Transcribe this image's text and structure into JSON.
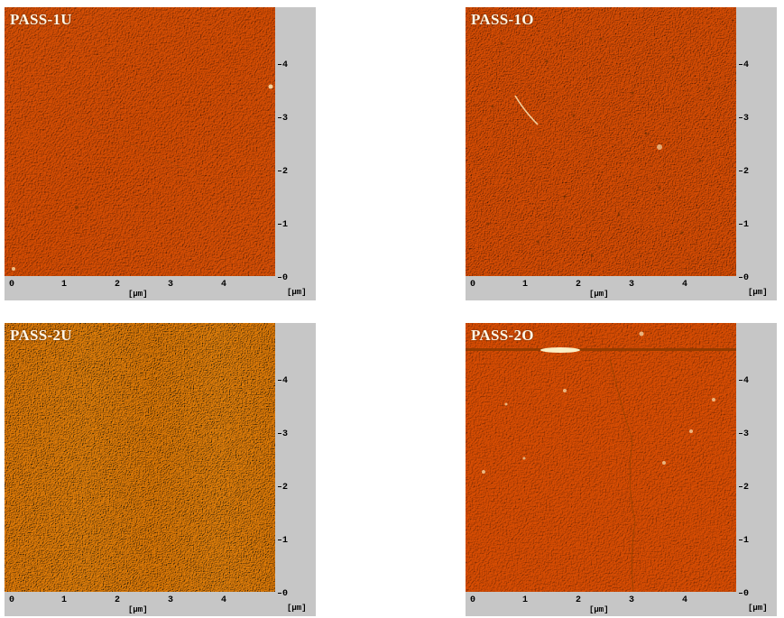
{
  "panels": [
    {
      "label": "PASS-1U",
      "x_ticks": [
        "0",
        "1",
        "2",
        "3",
        "4"
      ],
      "y_ticks": [
        "0",
        "1",
        "2",
        "3",
        "4"
      ],
      "unit": "[μm]",
      "unit_y": "[μm]",
      "tone": "orange-fine"
    },
    {
      "label": "PASS-1O",
      "x_ticks": [
        "0",
        "1",
        "2",
        "3",
        "4"
      ],
      "y_ticks": [
        "0",
        "1",
        "2",
        "3",
        "4"
      ],
      "unit": "[μm]",
      "unit_y": "[μm]",
      "tone": "orange-speckled"
    },
    {
      "label": "PASS-2U",
      "x_ticks": [
        "0",
        "1",
        "2",
        "3",
        "4"
      ],
      "y_ticks": [
        "0",
        "1",
        "2",
        "3",
        "4"
      ],
      "unit": "[μm]",
      "unit_y": "[μm]",
      "tone": "yellow-granular"
    },
    {
      "label": "PASS-2O",
      "x_ticks": [
        "0",
        "1",
        "2",
        "3",
        "4"
      ],
      "y_ticks": [
        "0",
        "1",
        "2",
        "3",
        "4"
      ],
      "unit": "[μm]",
      "unit_y": "[μm]",
      "tone": "orange-scratched"
    }
  ],
  "colors": {
    "frame": "#c6c6c6",
    "orange": "#e0801a",
    "yellow": "#e8a428"
  }
}
